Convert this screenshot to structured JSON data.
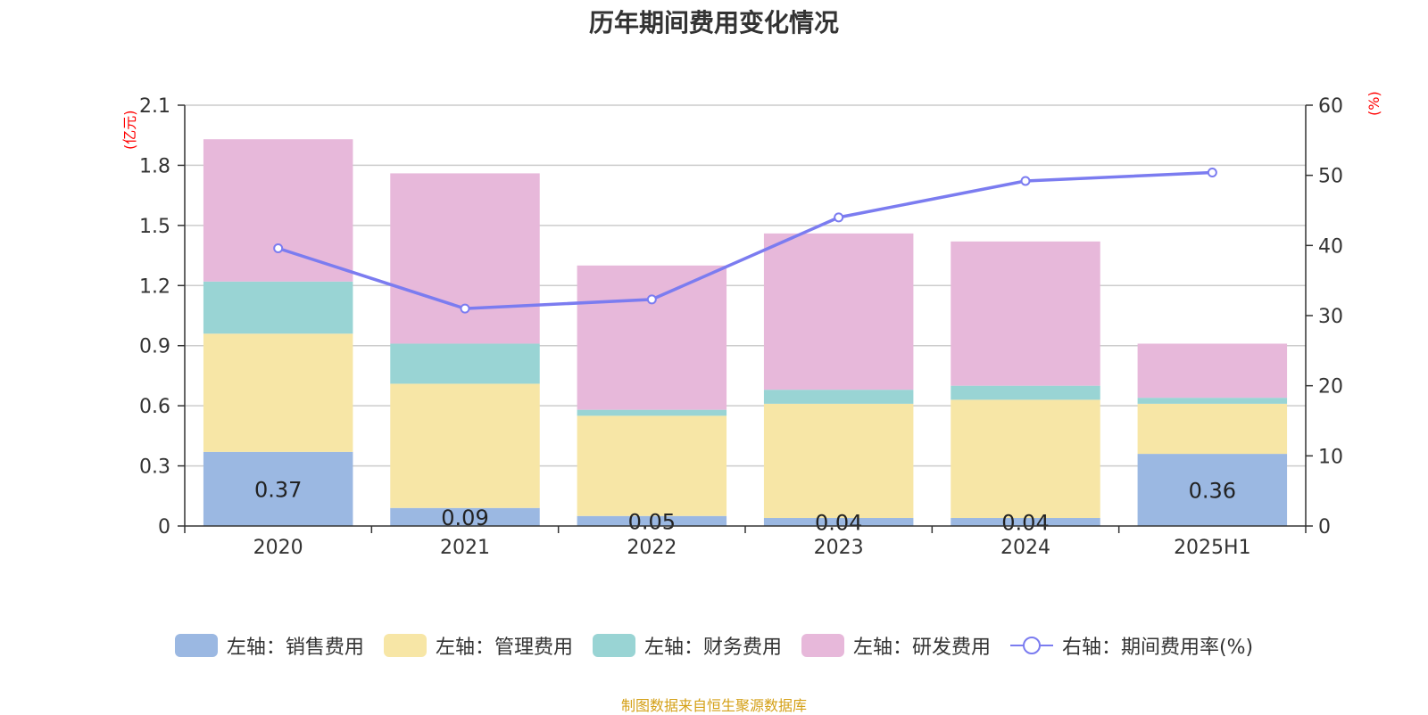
{
  "title": "历年期间费用变化情况",
  "source": "制图数据来自恒生聚源数据库",
  "left_unit": "(亿元)",
  "right_unit": "(%)",
  "unit_color": "#ff0000",
  "legend": [
    {
      "label": "左轴：销售费用",
      "color": "#9bb8e2",
      "kind": "bar"
    },
    {
      "label": "左轴：管理费用",
      "color": "#f7e6a6",
      "kind": "bar"
    },
    {
      "label": "左轴：财务费用",
      "color": "#99d4d4",
      "kind": "bar"
    },
    {
      "label": "左轴：研发费用",
      "color": "#e7b8da",
      "kind": "bar"
    },
    {
      "label": "右轴：期间费用率(%)",
      "color": "#7b7cf0",
      "kind": "line"
    }
  ],
  "chart_data": {
    "type": "bar",
    "stacked": true,
    "categories": [
      "2020",
      "2021",
      "2022",
      "2023",
      "2024",
      "2025H1"
    ],
    "series": [
      {
        "name": "左轴：销售费用",
        "axis": "left",
        "color": "#9bb8e2",
        "values": [
          0.37,
          0.09,
          0.05,
          0.04,
          0.04,
          0.36
        ]
      },
      {
        "name": "左轴：管理费用",
        "axis": "left",
        "color": "#f7e6a6",
        "values": [
          0.59,
          0.62,
          0.5,
          0.57,
          0.59,
          0.25
        ]
      },
      {
        "name": "左轴：财务费用",
        "axis": "left",
        "color": "#99d4d4",
        "values": [
          0.26,
          0.2,
          0.03,
          0.07,
          0.07,
          0.03
        ]
      },
      {
        "name": "左轴：研发费用",
        "axis": "left",
        "color": "#e7b8da",
        "values": [
          0.71,
          0.85,
          0.72,
          0.78,
          0.72,
          0.27
        ]
      },
      {
        "name": "右轴：期间费用率(%)",
        "axis": "right",
        "type": "line",
        "color": "#7b7cf0",
        "values": [
          39.6,
          31.0,
          32.3,
          44.0,
          49.2,
          50.4
        ]
      }
    ],
    "data_labels": [
      "0.37",
      "0.09",
      "0.05",
      "0.04",
      "0.04",
      "0.36"
    ],
    "left_axis": {
      "ylim": [
        0,
        2.1
      ],
      "ticks": [
        "0",
        "0.3",
        "0.6",
        "0.9",
        "1.2",
        "1.5",
        "1.8",
        "2.1"
      ]
    },
    "right_axis": {
      "ylim": [
        0,
        60
      ],
      "ticks": [
        "0",
        "10",
        "20",
        "30",
        "40",
        "50",
        "60"
      ]
    },
    "grid": true,
    "legend_position": "bottom"
  }
}
